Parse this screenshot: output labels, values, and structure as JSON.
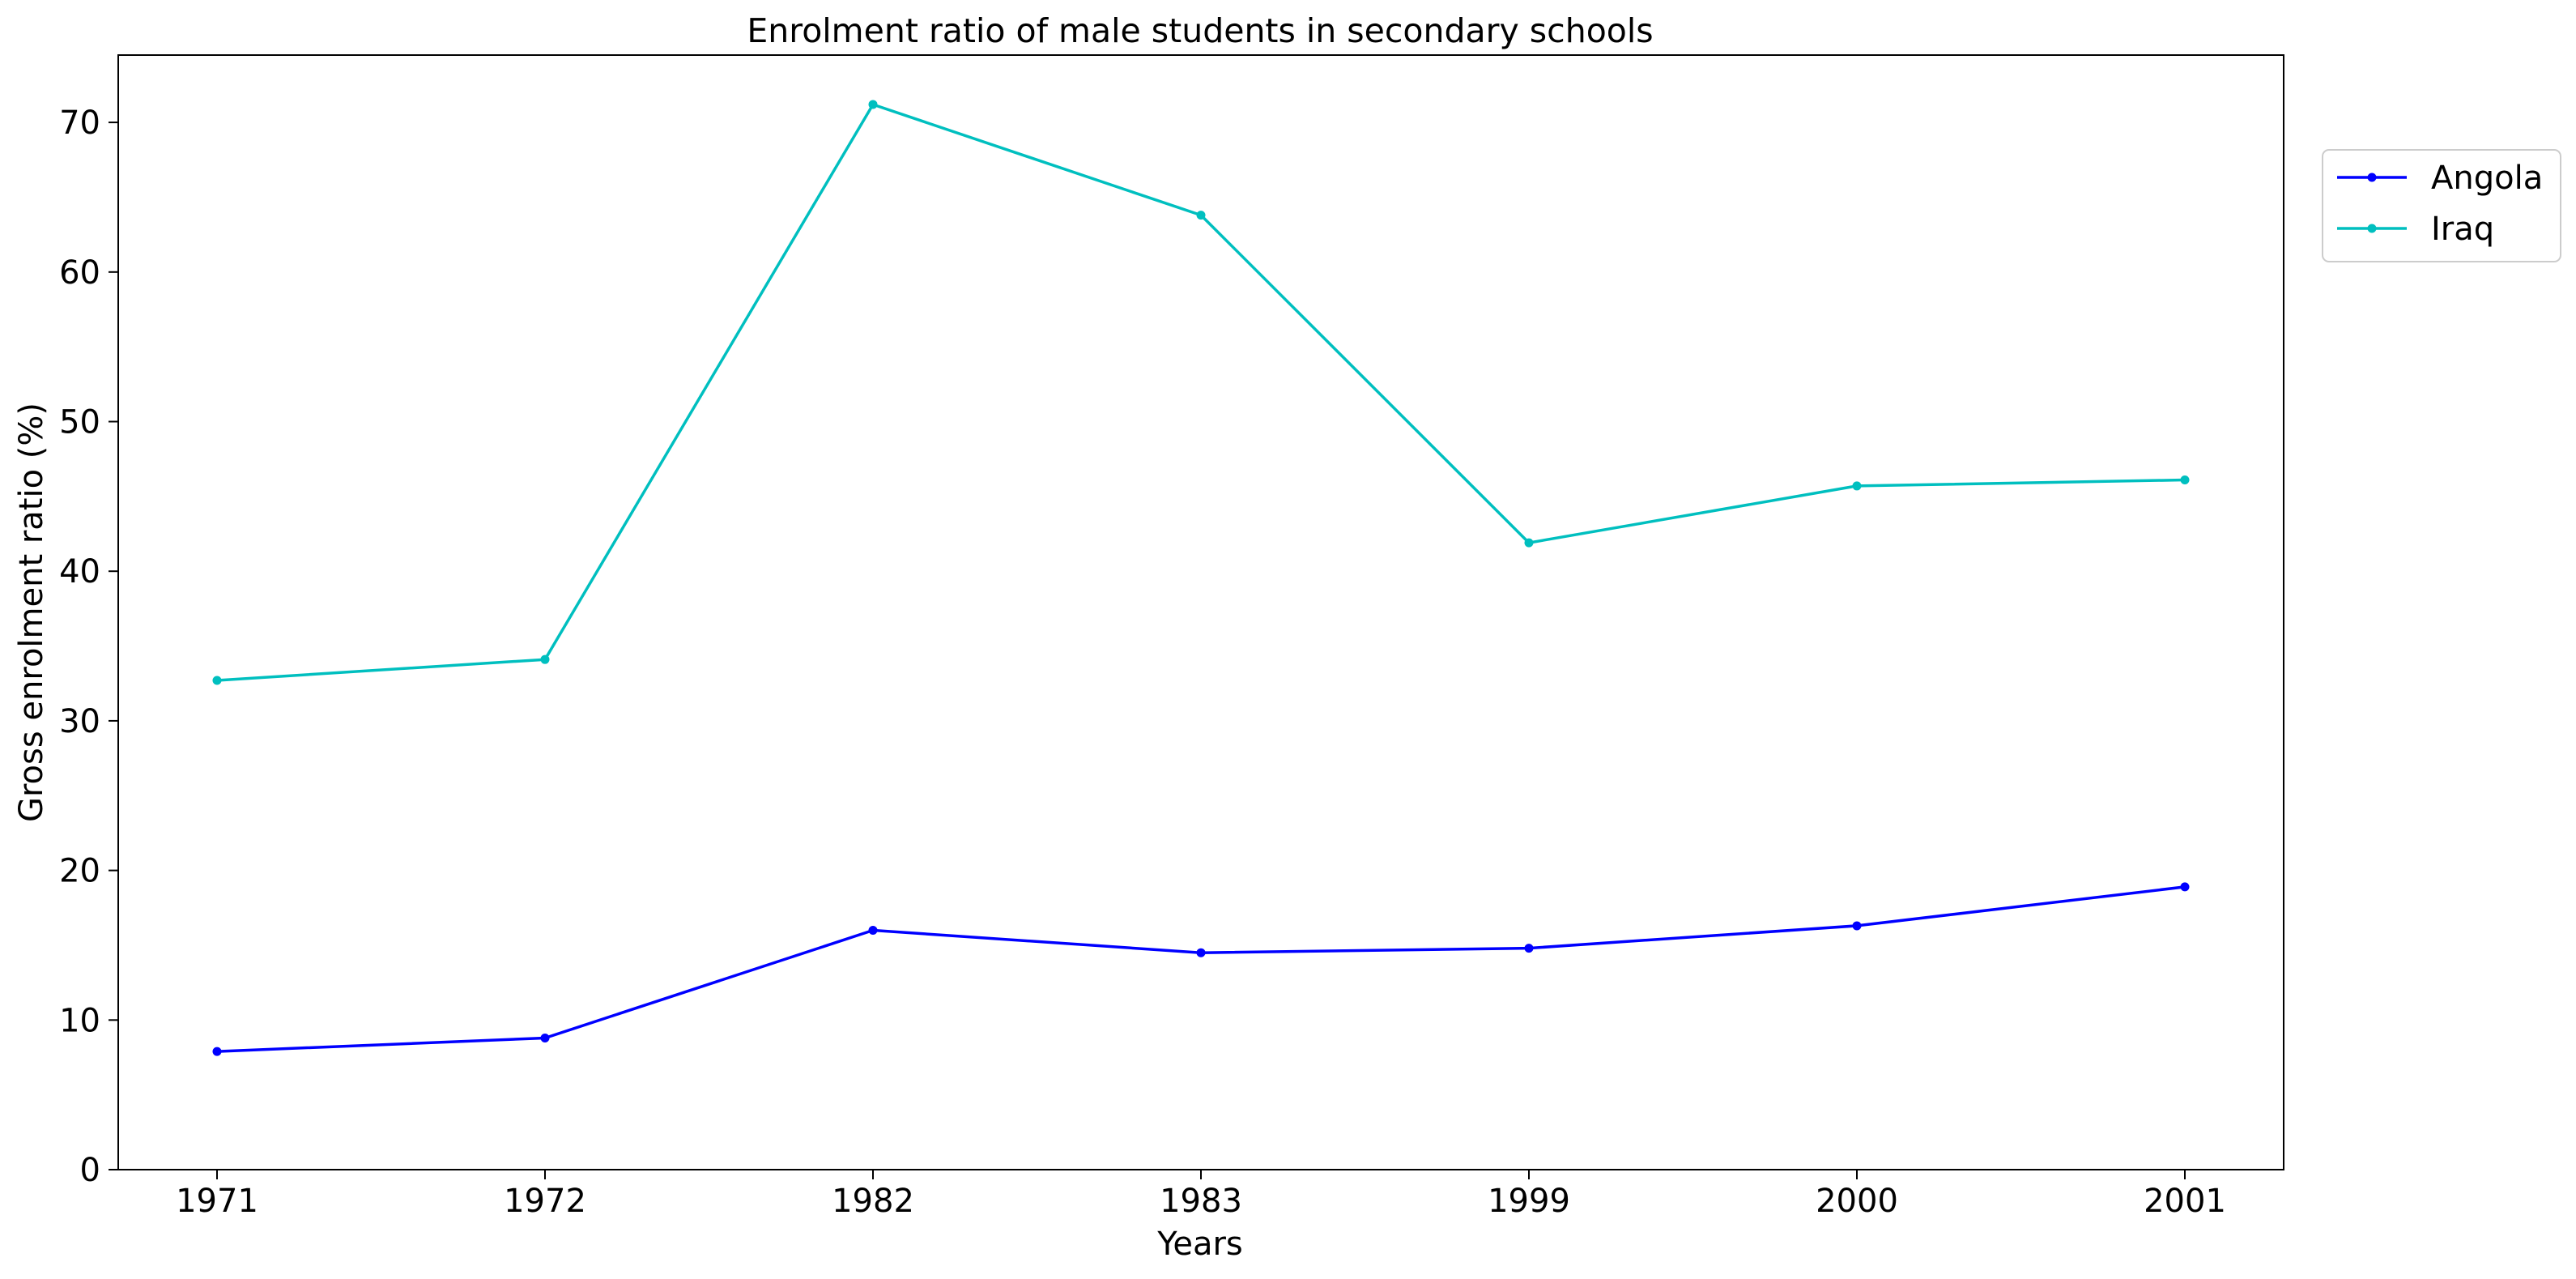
{
  "chart_data": {
    "type": "line",
    "title": "Enrolment ratio of male students in secondary schools",
    "xlabel": "Years",
    "ylabel": "Gross enrolment ratio (%)",
    "categories": [
      "1971",
      "1972",
      "1982",
      "1983",
      "1999",
      "2000",
      "2001"
    ],
    "ylim": [
      0,
      74.5
    ],
    "yticks": [
      0,
      10,
      20,
      30,
      40,
      50,
      60,
      70
    ],
    "grid": false,
    "legend_position": "upper-right, outside plot area",
    "series": [
      {
        "name": "Angola",
        "color": "#0000ff",
        "values": [
          7.9,
          8.8,
          16.0,
          14.5,
          14.8,
          16.3,
          18.9
        ]
      },
      {
        "name": "Iraq",
        "color": "#00bfbf",
        "values": [
          32.7,
          34.1,
          71.2,
          63.8,
          41.9,
          45.7,
          46.1
        ]
      }
    ]
  }
}
